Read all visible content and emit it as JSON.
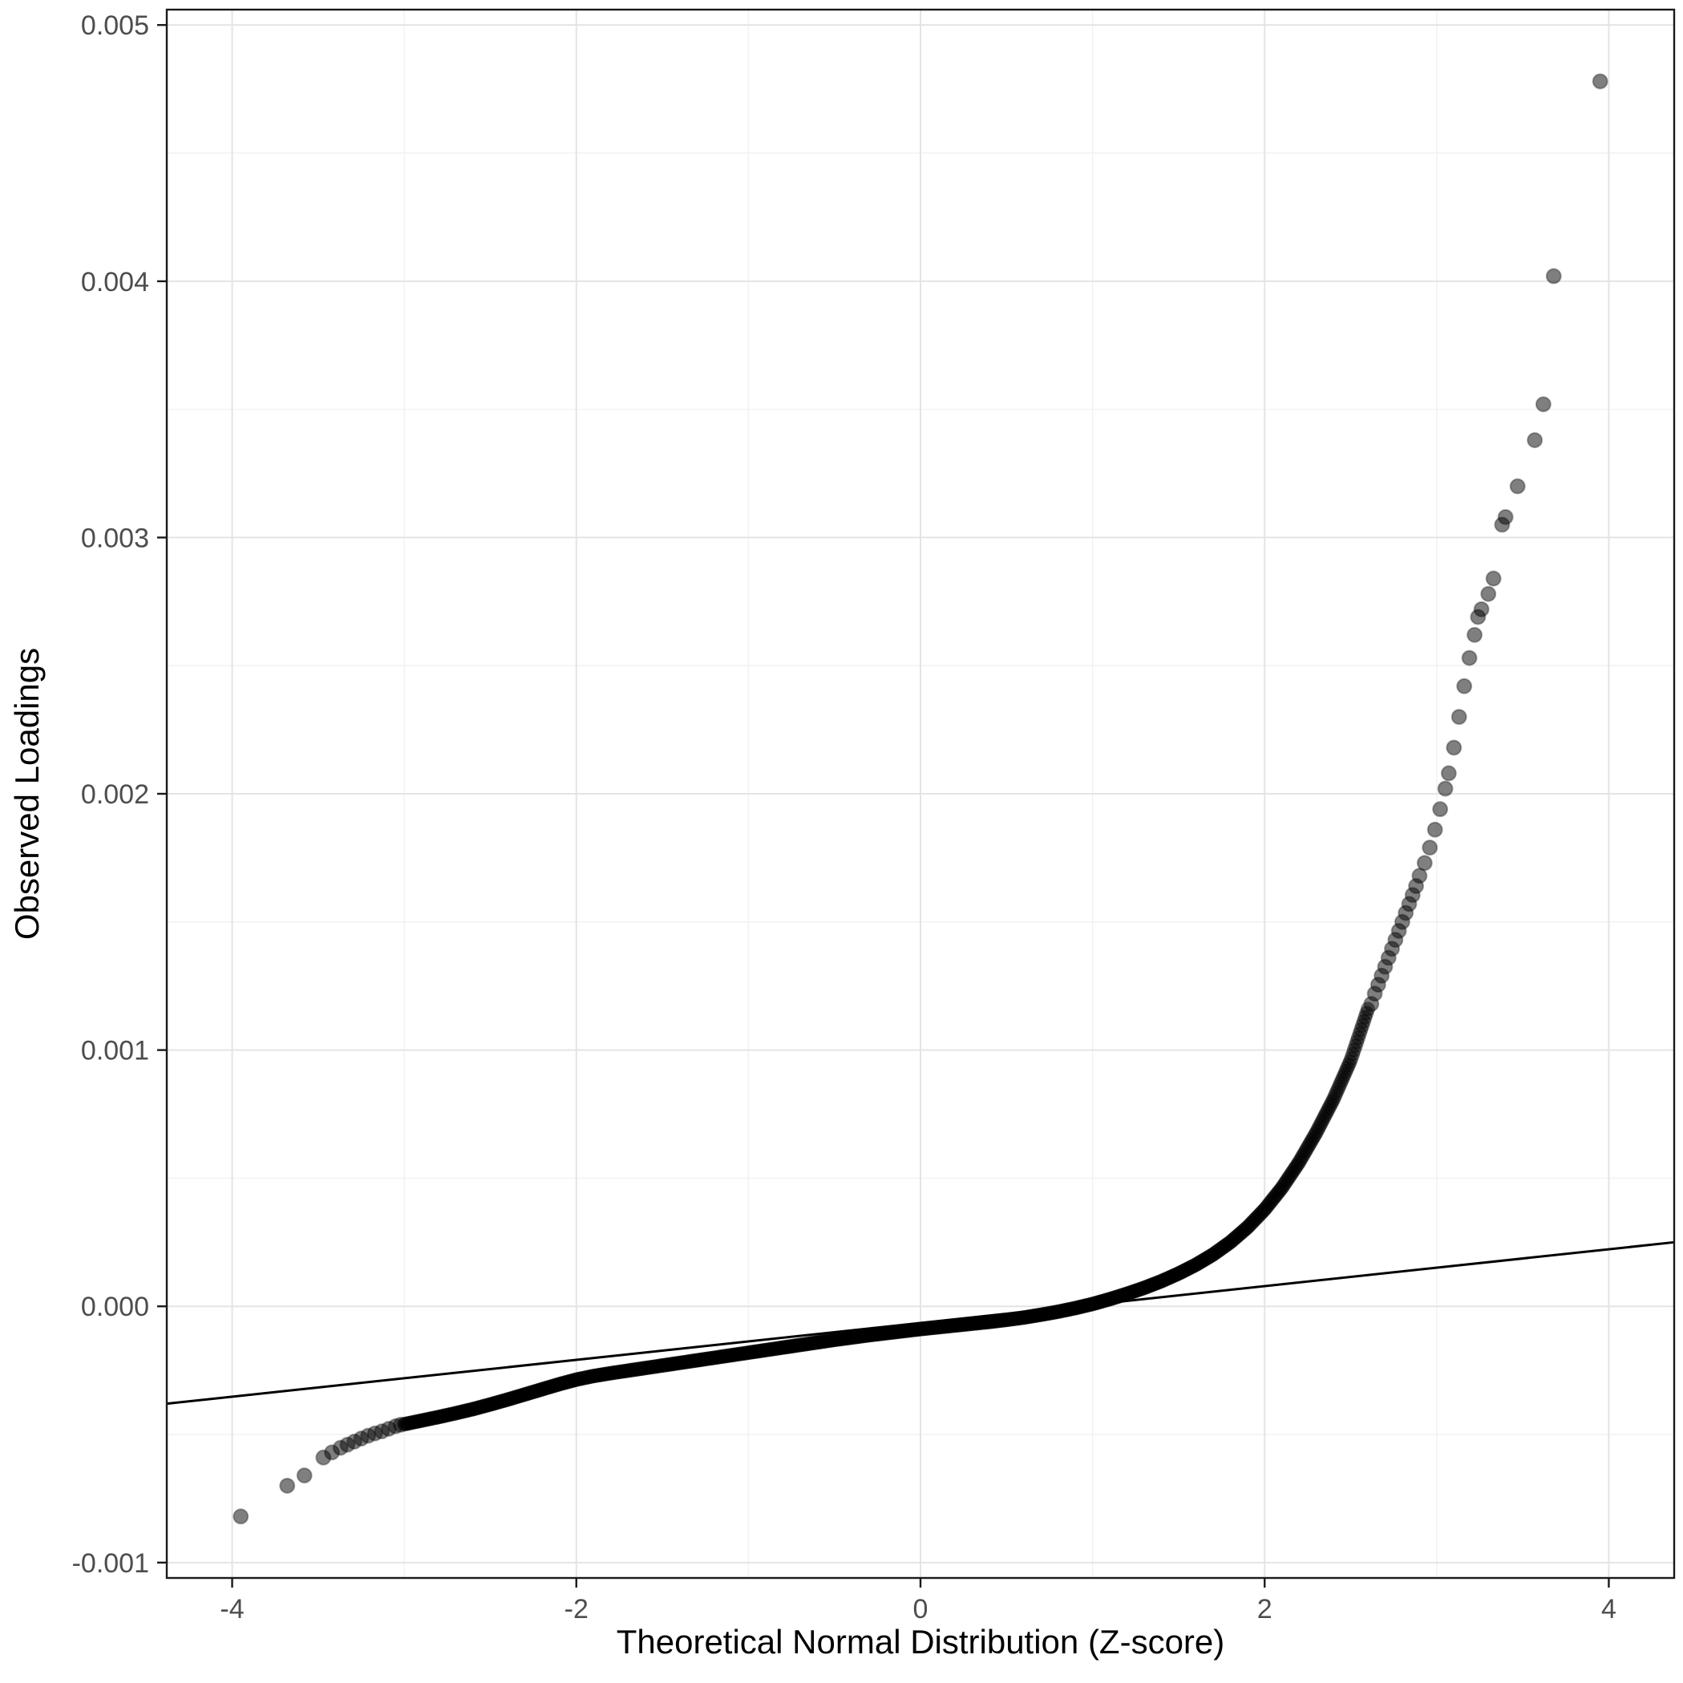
{
  "chart_data": {
    "type": "scatter",
    "subtype": "qq-plot",
    "title": "",
    "xlabel": "Theoretical Normal Distribution (Z-score)",
    "ylabel": "Observed Loadings",
    "xlim": [
      -4.38,
      4.38
    ],
    "ylim": [
      -0.00106,
      0.00506
    ],
    "grid": true,
    "legend": "none",
    "x_ticks": {
      "values": [
        -4,
        -2,
        0,
        2,
        4
      ],
      "labels": [
        "-4",
        "-2",
        "0",
        "2",
        "4"
      ]
    },
    "x_minor": [
      -3,
      -1,
      1,
      3
    ],
    "y_ticks": {
      "values": [
        -0.001,
        0.0,
        0.001,
        0.002,
        0.003,
        0.004,
        0.005
      ],
      "labels": [
        "-0.001",
        "0.000",
        "0.001",
        "0.002",
        "0.003",
        "0.004",
        "0.005"
      ]
    },
    "y_minor": [
      -0.0005,
      0.0005,
      0.0015,
      0.0025,
      0.0035,
      0.0045
    ],
    "colors": {
      "panel_background": "#ffffff",
      "grid_major": "#e4e4e4",
      "grid_minor": "#f1f1f1",
      "panel_border": "#1a1a1a",
      "tick": "#1a1a1a",
      "tick_label": "#4d4d4d",
      "point": "#000000",
      "reference_line": "#000000"
    },
    "point_style": {
      "radius": 9,
      "opacity": 0.5,
      "tail_stroke_opacity": 0.3
    },
    "reference_line": {
      "x1": -4.38,
      "y1": -0.00038,
      "x2": 4.38,
      "y2": 0.00025,
      "width": 3
    },
    "bulk_band": {
      "description": "dense overlapping sample points along the monotone QQ curve between z=-3 and z=2.6",
      "z_step": 0.008,
      "curve": [
        [
          -3.0,
          -0.00046
        ],
        [
          -2.9,
          -0.000446
        ],
        [
          -2.8,
          -0.000432
        ],
        [
          -2.7,
          -0.000417
        ],
        [
          -2.6,
          -0.000401
        ],
        [
          -2.5,
          -0.000383
        ],
        [
          -2.4,
          -0.000364
        ],
        [
          -2.3,
          -0.000344
        ],
        [
          -2.2,
          -0.000324
        ],
        [
          -2.1,
          -0.000304
        ],
        [
          -2.0,
          -0.000286
        ],
        [
          -1.9,
          -0.000272
        ],
        [
          -1.8,
          -0.000261
        ],
        [
          -1.7,
          -0.000251
        ],
        [
          -1.6,
          -0.000241
        ],
        [
          -1.5,
          -0.000231
        ],
        [
          -1.4,
          -0.000221
        ],
        [
          -1.3,
          -0.000211
        ],
        [
          -1.2,
          -0.000201
        ],
        [
          -1.1,
          -0.000191
        ],
        [
          -1.0,
          -0.000181
        ],
        [
          -0.9,
          -0.000171
        ],
        [
          -0.8,
          -0.000161
        ],
        [
          -0.7,
          -0.000151
        ],
        [
          -0.6,
          -0.000141
        ],
        [
          -0.5,
          -0.000131
        ],
        [
          -0.4,
          -0.000122
        ],
        [
          -0.3,
          -0.000113
        ],
        [
          -0.2,
          -0.000105
        ],
        [
          -0.1,
          -9.7e-05
        ],
        [
          0.0,
          -8.9e-05
        ],
        [
          0.1,
          -8.2e-05
        ],
        [
          0.2,
          -7.5e-05
        ],
        [
          0.3,
          -6.8e-05
        ],
        [
          0.4,
          -6.1e-05
        ],
        [
          0.5,
          -5.3e-05
        ],
        [
          0.6,
          -4.4e-05
        ],
        [
          0.7,
          -3.3e-05
        ],
        [
          0.8,
          -2.1e-05
        ],
        [
          0.9,
          -7e-06
        ],
        [
          1.0,
          9e-06
        ],
        [
          1.1,
          2.8e-05
        ],
        [
          1.2,
          4.9e-05
        ],
        [
          1.3,
          7.2e-05
        ],
        [
          1.4,
          9.8e-05
        ],
        [
          1.5,
          0.000128
        ],
        [
          1.6,
          0.000162
        ],
        [
          1.7,
          0.000202
        ],
        [
          1.8,
          0.00025
        ],
        [
          1.9,
          0.000308
        ],
        [
          2.0,
          0.000378
        ],
        [
          2.1,
          0.000462
        ],
        [
          2.2,
          0.000562
        ],
        [
          2.3,
          0.000678
        ],
        [
          2.4,
          0.000808
        ],
        [
          2.5,
          0.00096
        ],
        [
          2.6,
          0.00116
        ]
      ]
    },
    "left_tail_points": [
      [
        -3.95,
        -0.00082
      ],
      [
        -3.68,
        -0.0007
      ],
      [
        -3.58,
        -0.00066
      ],
      [
        -3.47,
        -0.00059
      ],
      [
        -3.42,
        -0.00057
      ],
      [
        -3.37,
        -0.000552
      ],
      [
        -3.33,
        -0.00054
      ],
      [
        -3.29,
        -0.000528
      ],
      [
        -3.25,
        -0.000516
      ],
      [
        -3.21,
        -0.000505
      ],
      [
        -3.17,
        -0.000496
      ],
      [
        -3.13,
        -0.000488
      ],
      [
        -3.09,
        -0.000478
      ],
      [
        -3.05,
        -0.000468
      ],
      [
        -3.02,
        -0.000462
      ]
    ],
    "right_tail_points": [
      [
        2.62,
        0.00118
      ],
      [
        2.64,
        0.00122
      ],
      [
        2.66,
        0.001255
      ],
      [
        2.68,
        0.00129
      ],
      [
        2.7,
        0.001325
      ],
      [
        2.72,
        0.00136
      ],
      [
        2.74,
        0.001395
      ],
      [
        2.76,
        0.00143
      ],
      [
        2.78,
        0.001465
      ],
      [
        2.8,
        0.0015
      ],
      [
        2.82,
        0.001535
      ],
      [
        2.84,
        0.00157
      ],
      [
        2.86,
        0.001605
      ],
      [
        2.88,
        0.00164
      ],
      [
        2.9,
        0.00168
      ],
      [
        2.93,
        0.00173
      ],
      [
        2.96,
        0.00179
      ],
      [
        2.99,
        0.00186
      ],
      [
        3.02,
        0.00194
      ],
      [
        3.05,
        0.00202
      ],
      [
        3.07,
        0.00208
      ],
      [
        3.1,
        0.00218
      ],
      [
        3.13,
        0.0023
      ],
      [
        3.16,
        0.00242
      ],
      [
        3.19,
        0.00253
      ],
      [
        3.22,
        0.00262
      ],
      [
        3.24,
        0.00269
      ],
      [
        3.26,
        0.00272
      ],
      [
        3.3,
        0.00278
      ],
      [
        3.33,
        0.00284
      ],
      [
        3.38,
        0.00305
      ],
      [
        3.4,
        0.00308
      ],
      [
        3.47,
        0.0032
      ],
      [
        3.57,
        0.00338
      ],
      [
        3.62,
        0.00352
      ],
      [
        3.68,
        0.00402
      ],
      [
        3.95,
        0.00478
      ]
    ]
  }
}
